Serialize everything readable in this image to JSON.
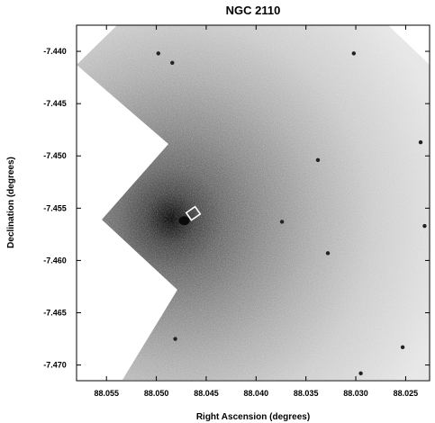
{
  "figure": {
    "title": "NGC 2110",
    "xlabel": "Right Ascension (degrees)",
    "ylabel": "Declination (degrees)",
    "x_ticks": [
      "88.055",
      "88.050",
      "88.045",
      "88.040",
      "88.035",
      "88.030",
      "88.025"
    ],
    "y_ticks": [
      "-7.440",
      "-7.445",
      "-7.450",
      "-7.455",
      "-7.460",
      "-7.465",
      "-7.470"
    ],
    "ra_range": [
      88.058,
      88.0226
    ],
    "dec_range": [
      -7.4375,
      -7.4715
    ],
    "nucleus": {
      "ra": 88.0472,
      "dec": -7.4562
    },
    "slit_box": {
      "ra": 88.0463,
      "dec": -7.4555
    },
    "point_sources": [
      {
        "ra": 88.0498,
        "dec": -7.4402
      },
      {
        "ra": 88.0484,
        "dec": -7.4411
      },
      {
        "ra": 88.0302,
        "dec": -7.4402
      },
      {
        "ra": 88.0235,
        "dec": -7.4487
      },
      {
        "ra": 88.0374,
        "dec": -7.4563
      },
      {
        "ra": 88.0328,
        "dec": -7.4593
      },
      {
        "ra": 88.0231,
        "dec": -7.4567
      },
      {
        "ra": 88.0338,
        "dec": -7.4504
      },
      {
        "ra": 88.0481,
        "dec": -7.4675
      },
      {
        "ra": 88.0253,
        "dec": -7.4683
      },
      {
        "ra": 88.0295,
        "dec": -7.4708
      }
    ],
    "colors": {
      "frame": "#000000",
      "background": "#ffffff",
      "core": "#141414",
      "sky": "#e2e2e2",
      "slit": "#ffffff"
    }
  }
}
